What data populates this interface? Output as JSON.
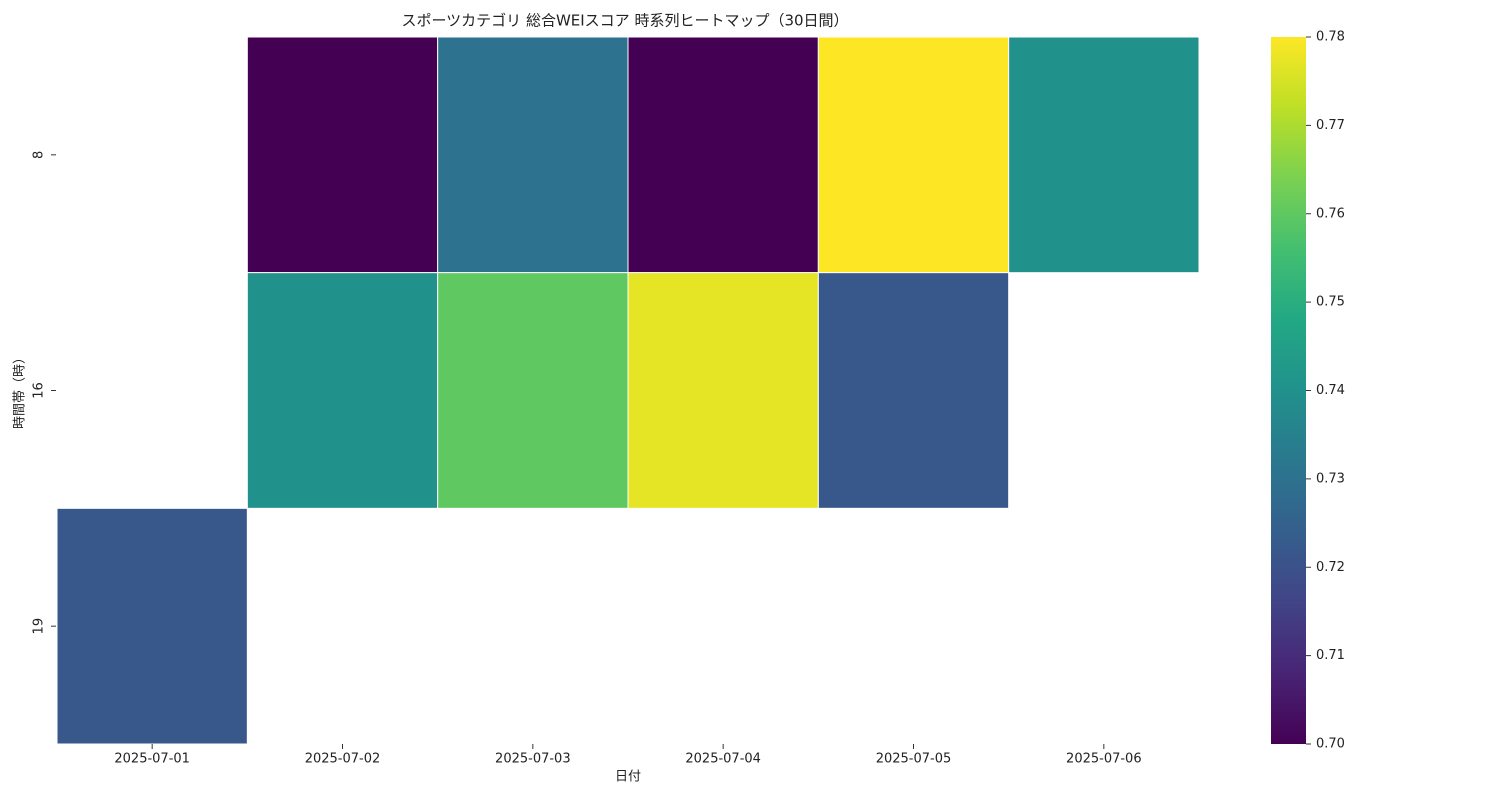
{
  "chart_data": {
    "type": "heatmap",
    "title": "スポーツカテゴリ 総合WEIスコア 時系列ヒートマップ（30日間）",
    "x_label": "日付",
    "y_label": "時間帯（時）",
    "x": [
      "2025-07-01",
      "2025-07-02",
      "2025-07-03",
      "2025-07-04",
      "2025-07-05",
      "2025-07-06"
    ],
    "y": [
      "8",
      "16",
      "19"
    ],
    "values": [
      [
        null,
        0.7,
        0.73,
        0.7,
        0.78,
        0.74
      ],
      [
        null,
        0.74,
        0.76,
        0.777,
        0.722,
        null
      ],
      [
        0.722,
        null,
        null,
        null,
        null,
        null
      ]
    ],
    "colormap": "viridis",
    "clim": [
      0.7,
      0.78
    ],
    "cticks": [
      {
        "value": 0.7,
        "label": "0.70"
      },
      0.71,
      0.72,
      0.73,
      0.74,
      0.75,
      0.76,
      0.77,
      0.78
    ]
  }
}
